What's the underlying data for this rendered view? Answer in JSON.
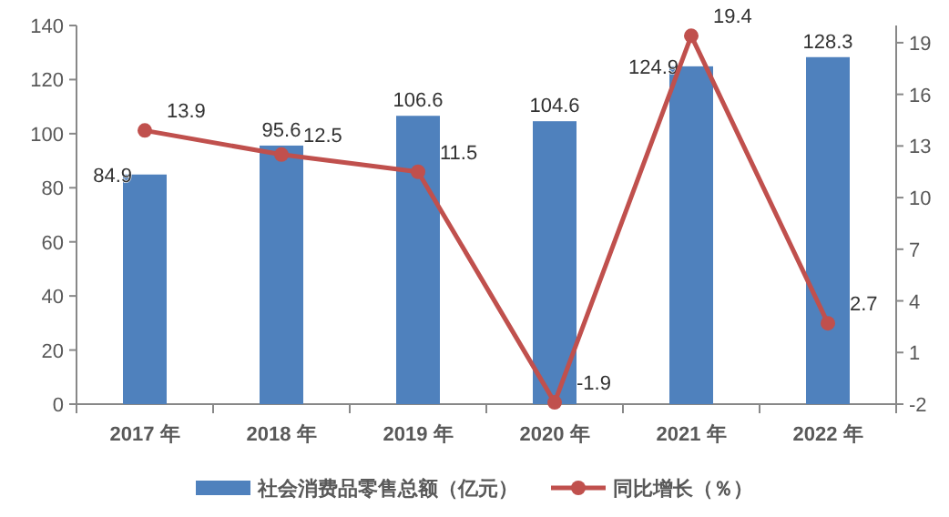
{
  "chart_data": {
    "type": "bar",
    "categories": [
      "2017 年",
      "2018 年",
      "2019 年",
      "2020 年",
      "2021 年",
      "2022 年"
    ],
    "series": [
      {
        "name": "社会消费品零售总额（亿元）",
        "color": "#4f81bd",
        "values": [
          84.9,
          95.6,
          106.6,
          104.6,
          124.9,
          128.3
        ]
      },
      {
        "name": "同比增长（％）",
        "type": "line",
        "axis": "y2",
        "color": "#c0504d",
        "marker": "circle",
        "values": [
          13.9,
          12.5,
          11.5,
          -1.9,
          19.4,
          2.7
        ]
      }
    ],
    "ylim": [
      0,
      140
    ],
    "yticks": [
      0,
      20,
      40,
      60,
      80,
      100,
      120,
      140
    ],
    "y2lim": [
      -2,
      20
    ],
    "y2ticks": [
      -2,
      1,
      4,
      7,
      10,
      13,
      16,
      19
    ],
    "data_labels": true,
    "grid": false,
    "legend": "bottom"
  }
}
